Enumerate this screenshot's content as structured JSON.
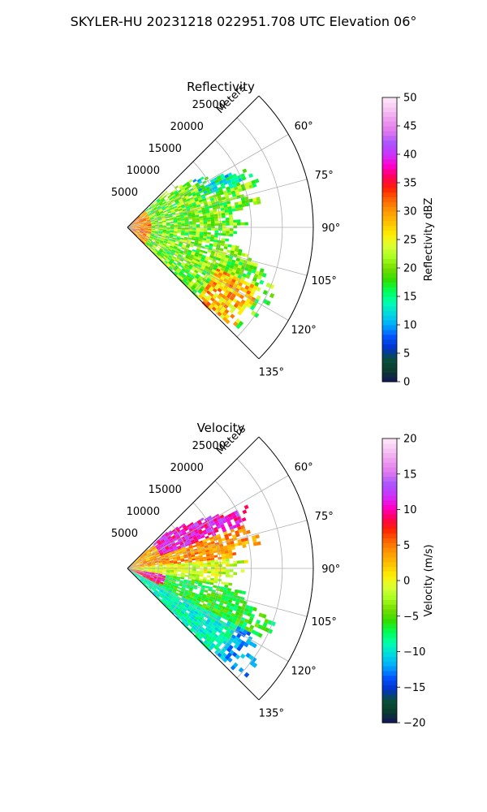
{
  "figure_title": "SKYLER-HU  20231218  022951.708 UTC Elevation 06°",
  "chart_data": [
    {
      "type": "heatmap",
      "projection": "polar-sector",
      "title": "Reflectivity",
      "radial_axis_label": "Meters",
      "radial_ticks": [
        "5000",
        "10000",
        "15000",
        "20000",
        "25000"
      ],
      "radial_range": [
        0,
        30000
      ],
      "angle_ticks": [
        "60°",
        "75°",
        "90°",
        "105°",
        "120°",
        "135°"
      ],
      "angle_range_deg": [
        45,
        135
      ],
      "grid": true,
      "colorbar": {
        "label": "Reflectivity dBZ",
        "range": [
          0,
          50
        ],
        "ticks": [
          "0",
          "5",
          "10",
          "15",
          "20",
          "25",
          "30",
          "35",
          "40",
          "45",
          "50"
        ],
        "colors": [
          "#14145a",
          "#0b3d2e",
          "#0a4f3c",
          "#0033cc",
          "#0055ff",
          "#00aaff",
          "#00d8e0",
          "#00ffb0",
          "#00ff55",
          "#33dd00",
          "#77dd00",
          "#aaff22",
          "#ddff33",
          "#ffee00",
          "#ffc000",
          "#ff9900",
          "#ff6600",
          "#ff2200",
          "#ff0055",
          "#ff00cc",
          "#cc33ff",
          "#aa55ff",
          "#dd77ee",
          "#ee99ee",
          "#f6c6f3",
          "#fde8fb"
        ]
      }
    },
    {
      "type": "heatmap",
      "projection": "polar-sector",
      "title": "Velocity",
      "radial_axis_label": "Meters",
      "radial_ticks": [
        "5000",
        "10000",
        "15000",
        "20000",
        "25000"
      ],
      "radial_range": [
        0,
        30000
      ],
      "angle_ticks": [
        "60°",
        "75°",
        "90°",
        "105°",
        "120°",
        "135°"
      ],
      "angle_range_deg": [
        45,
        135
      ],
      "grid": true,
      "colorbar": {
        "label": "Velocity (m/s)",
        "range": [
          -20,
          20
        ],
        "ticks": [
          "−20",
          "−15",
          "−10",
          "−5",
          "0",
          "5",
          "10",
          "15",
          "20"
        ],
        "colors": [
          "#14145a",
          "#0b3d2e",
          "#0a4f3c",
          "#0033cc",
          "#0055ff",
          "#00aaff",
          "#00d8e0",
          "#00ffb0",
          "#00ff55",
          "#33dd00",
          "#77dd00",
          "#aaff22",
          "#ddff33",
          "#ffee00",
          "#ffc000",
          "#ff9900",
          "#ff6600",
          "#ff2200",
          "#ff0055",
          "#ff00cc",
          "#cc33ff",
          "#aa55ff",
          "#dd77ee",
          "#ee99ee",
          "#f6c6f3",
          "#fde8fb"
        ]
      }
    }
  ]
}
